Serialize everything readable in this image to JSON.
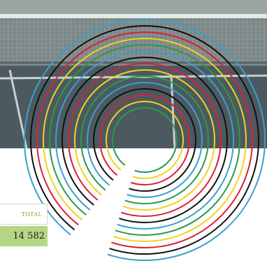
{
  "stats": {
    "total_label": "TOTAL",
    "total_value": "14 582"
  },
  "rings": {
    "colors": [
      "#3aa0cc",
      "#111111",
      "#d8203a",
      "#f2d21e",
      "#2a9a4a"
    ],
    "sequence": [
      "#3aa0cc",
      "#111111",
      "#d8203a",
      "#f2d21e",
      "#2a9a4a",
      "#3aa0cc",
      "#111111",
      "#d8203a",
      "#f2d21e",
      "#2a9a4a",
      "#3aa0cc",
      "#111111",
      "#d8203a",
      "#f2d21e",
      "#2a9a4a"
    ]
  },
  "photo": {
    "subject": "tennis-court-net"
  }
}
